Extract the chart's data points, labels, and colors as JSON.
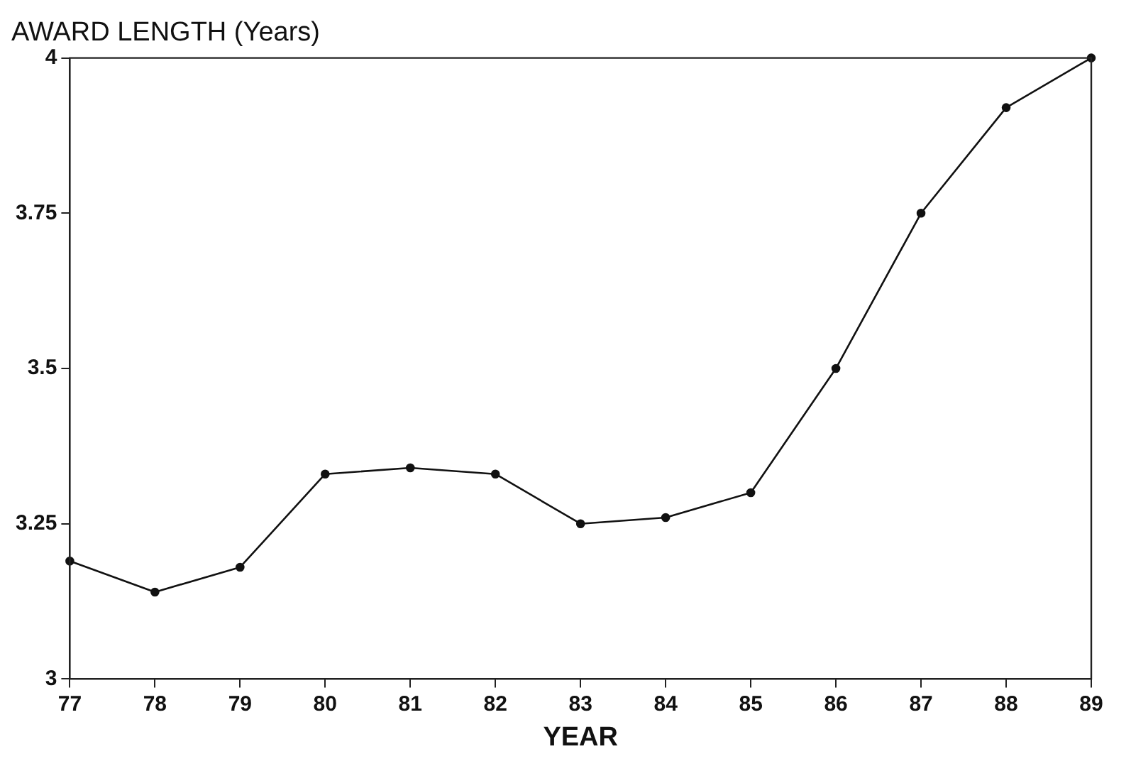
{
  "chart_data": {
    "type": "line",
    "title": "AWARD LENGTH (Years)",
    "xlabel": "YEAR",
    "x": [
      77,
      78,
      79,
      80,
      81,
      82,
      83,
      84,
      85,
      86,
      87,
      88,
      89
    ],
    "series": [
      {
        "color": "#111111",
        "values": [
          3.19,
          3.14,
          3.18,
          3.33,
          3.34,
          3.33,
          3.25,
          3.26,
          3.3,
          3.5,
          3.75,
          3.92,
          4.0
        ]
      }
    ],
    "xlim": [
      77,
      89
    ],
    "xticks": [
      77,
      78,
      79,
      80,
      81,
      82,
      83,
      84,
      85,
      86,
      87,
      88,
      89
    ],
    "ylim": [
      3,
      4
    ],
    "yticks": [
      3,
      3.25,
      3.5,
      3.75,
      4
    ],
    "grid": false,
    "legend": false,
    "marker": "circle",
    "line_style": "solid"
  }
}
